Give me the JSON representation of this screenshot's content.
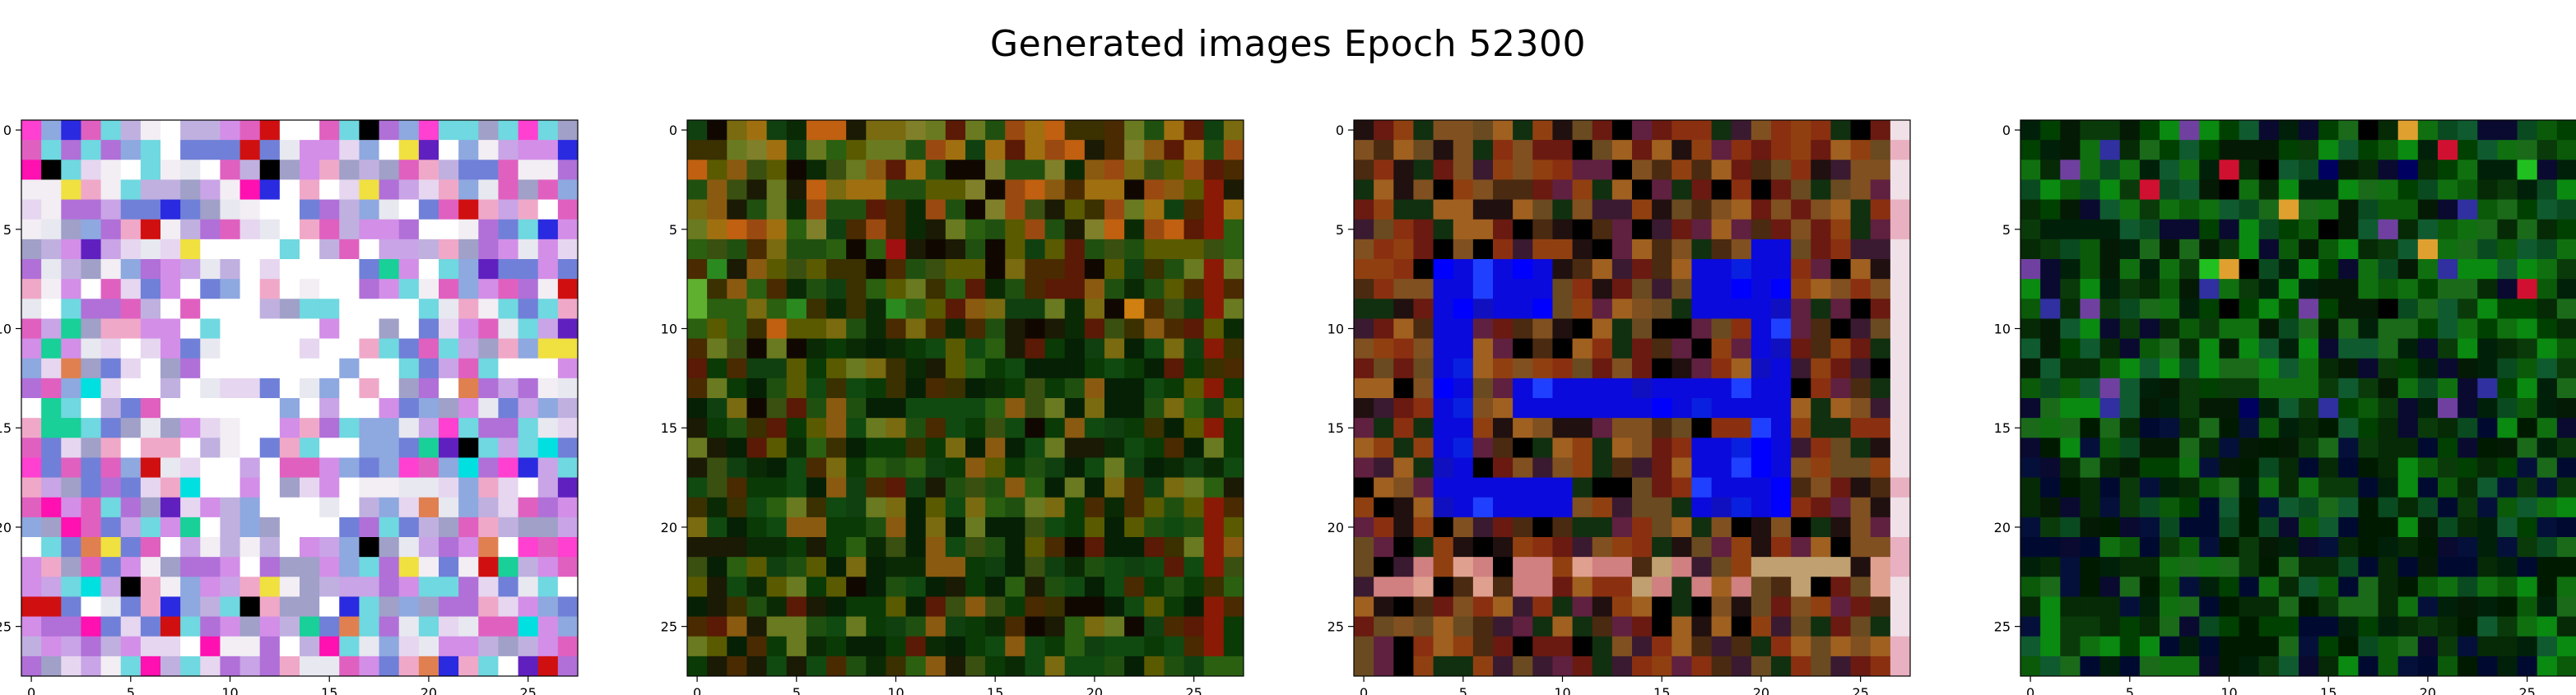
{
  "figure": {
    "suptitle": "Generated images Epoch 52300"
  },
  "chart_data": [
    {
      "type": "heatmap",
      "panel": 1,
      "rows": 28,
      "cols": 28,
      "xticks": [
        0,
        5,
        10,
        15,
        20,
        25
      ],
      "yticks": [
        0,
        5,
        10,
        15,
        20,
        25
      ],
      "xlim": [
        -0.5,
        27.5
      ],
      "ylim": [
        27.5,
        -0.5
      ],
      "palette": [
        "#f2eef4",
        "#ffffff",
        "#e6d6f0",
        "#c9a4e6",
        "#b070d8",
        "#d38ee8",
        "#8ea8e0",
        "#6fd8e0",
        "#f0a8c8",
        "#e060c0",
        "#a0a0c8",
        "#7080d8",
        "#e8e8f0",
        "#c0b0e0"
      ],
      "accents": [
        "#f0e040",
        "#00e0e0",
        "#2a2ae0",
        "#000000",
        "#d01010",
        "#18d098",
        "#ff40d0",
        "#e08050",
        "#6020c0",
        "#ff10b0"
      ],
      "bias": "center-light"
    },
    {
      "type": "heatmap",
      "panel": 2,
      "rows": 28,
      "cols": 28,
      "xticks": [
        0,
        5,
        10,
        15,
        20,
        25
      ],
      "yticks": [
        0,
        5,
        10,
        15,
        20,
        25
      ],
      "xlim": [
        -0.5,
        27.5
      ],
      "ylim": [
        27.5,
        -0.5
      ],
      "palette": [
        "#3a3000",
        "#5a5a00",
        "#7a6a10",
        "#8a5a10",
        "#205010",
        "#104010",
        "#0a2a05",
        "#1a1a05",
        "#4a2a00",
        "#6a7a20",
        "#2a6010",
        "#5a1a05",
        "#100800",
        "#3a5010"
      ],
      "accents": [
        "#c06010",
        "#60b030",
        "#a01010",
        "#000000",
        "#808040",
        "#d08010",
        "#2a8a20"
      ],
      "bias": "top-warm"
    },
    {
      "type": "heatmap",
      "panel": 3,
      "rows": 28,
      "cols": 28,
      "xticks": [
        0,
        5,
        10,
        15,
        20,
        25
      ],
      "yticks": [
        0,
        5,
        10,
        15,
        20,
        25
      ],
      "xlim": [
        -0.5,
        27.5
      ],
      "ylim": [
        27.5,
        -0.5
      ],
      "palette": [
        "#6a1a10",
        "#8a3010",
        "#a06020",
        "#4a2a10",
        "#000000",
        "#201010",
        "#6a4a20",
        "#3a1a30",
        "#805020",
        "#103010",
        "#602040",
        "#904010"
      ],
      "accents": [
        "#0000ff",
        "#1010c0",
        "#0a20e0",
        "#2040ff"
      ],
      "overlay_color": "#0a0adc",
      "right_edge_color": "#f0e0e8",
      "bias": "blue-shape"
    },
    {
      "type": "heatmap",
      "panel": 4,
      "rows": 28,
      "cols": 28,
      "xticks": [
        0,
        5,
        10,
        15,
        20,
        25
      ],
      "yticks": [
        0,
        5,
        10,
        15,
        20,
        25
      ],
      "xlim": [
        -0.5,
        27.5
      ],
      "ylim": [
        27.5,
        -0.5
      ],
      "palette": [
        "#0a5a0a",
        "#107010",
        "#0a3a0a",
        "#004000",
        "#0a8a10",
        "#052a05",
        "#00200a",
        "#0a0a30",
        "#051a05",
        "#1a6a1a",
        "#0a4a20",
        "#105a30"
      ],
      "accents": [
        "#20c020",
        "#000060",
        "#7040a0",
        "#e0a030",
        "#d01030",
        "#3030a0",
        "#000000"
      ],
      "bias": "green-dark"
    }
  ]
}
